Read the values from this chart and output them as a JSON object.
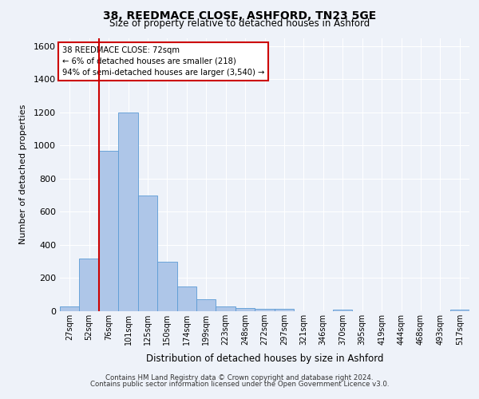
{
  "title_line1": "38, REEDMACE CLOSE, ASHFORD, TN23 5GE",
  "title_line2": "Size of property relative to detached houses in Ashford",
  "xlabel": "Distribution of detached houses by size in Ashford",
  "ylabel": "Number of detached properties",
  "footer_line1": "Contains HM Land Registry data © Crown copyright and database right 2024.",
  "footer_line2": "Contains public sector information licensed under the Open Government Licence v3.0.",
  "annotation_line1": "38 REEDMACE CLOSE: 72sqm",
  "annotation_line2": "← 6% of detached houses are smaller (218)",
  "annotation_line3": "94% of semi-detached houses are larger (3,540) →",
  "bar_color": "#aec6e8",
  "bar_edge_color": "#5b9bd5",
  "ref_line_color": "#cc0000",
  "ref_line_x": 1.5,
  "categories": [
    "27sqm",
    "52sqm",
    "76sqm",
    "101sqm",
    "125sqm",
    "150sqm",
    "174sqm",
    "199sqm",
    "223sqm",
    "248sqm",
    "272sqm",
    "297sqm",
    "321sqm",
    "346sqm",
    "370sqm",
    "395sqm",
    "419sqm",
    "444sqm",
    "468sqm",
    "493sqm",
    "517sqm"
  ],
  "values": [
    30,
    320,
    970,
    1200,
    700,
    300,
    150,
    70,
    30,
    20,
    15,
    15,
    0,
    0,
    10,
    0,
    0,
    0,
    0,
    0,
    10
  ],
  "ylim": [
    0,
    1650
  ],
  "yticks": [
    0,
    200,
    400,
    600,
    800,
    1000,
    1200,
    1400,
    1600
  ],
  "background_color": "#eef2f9",
  "plot_background": "#eef2f9",
  "grid_color": "#ffffff",
  "fig_width": 6.0,
  "fig_height": 5.0,
  "dpi": 100
}
